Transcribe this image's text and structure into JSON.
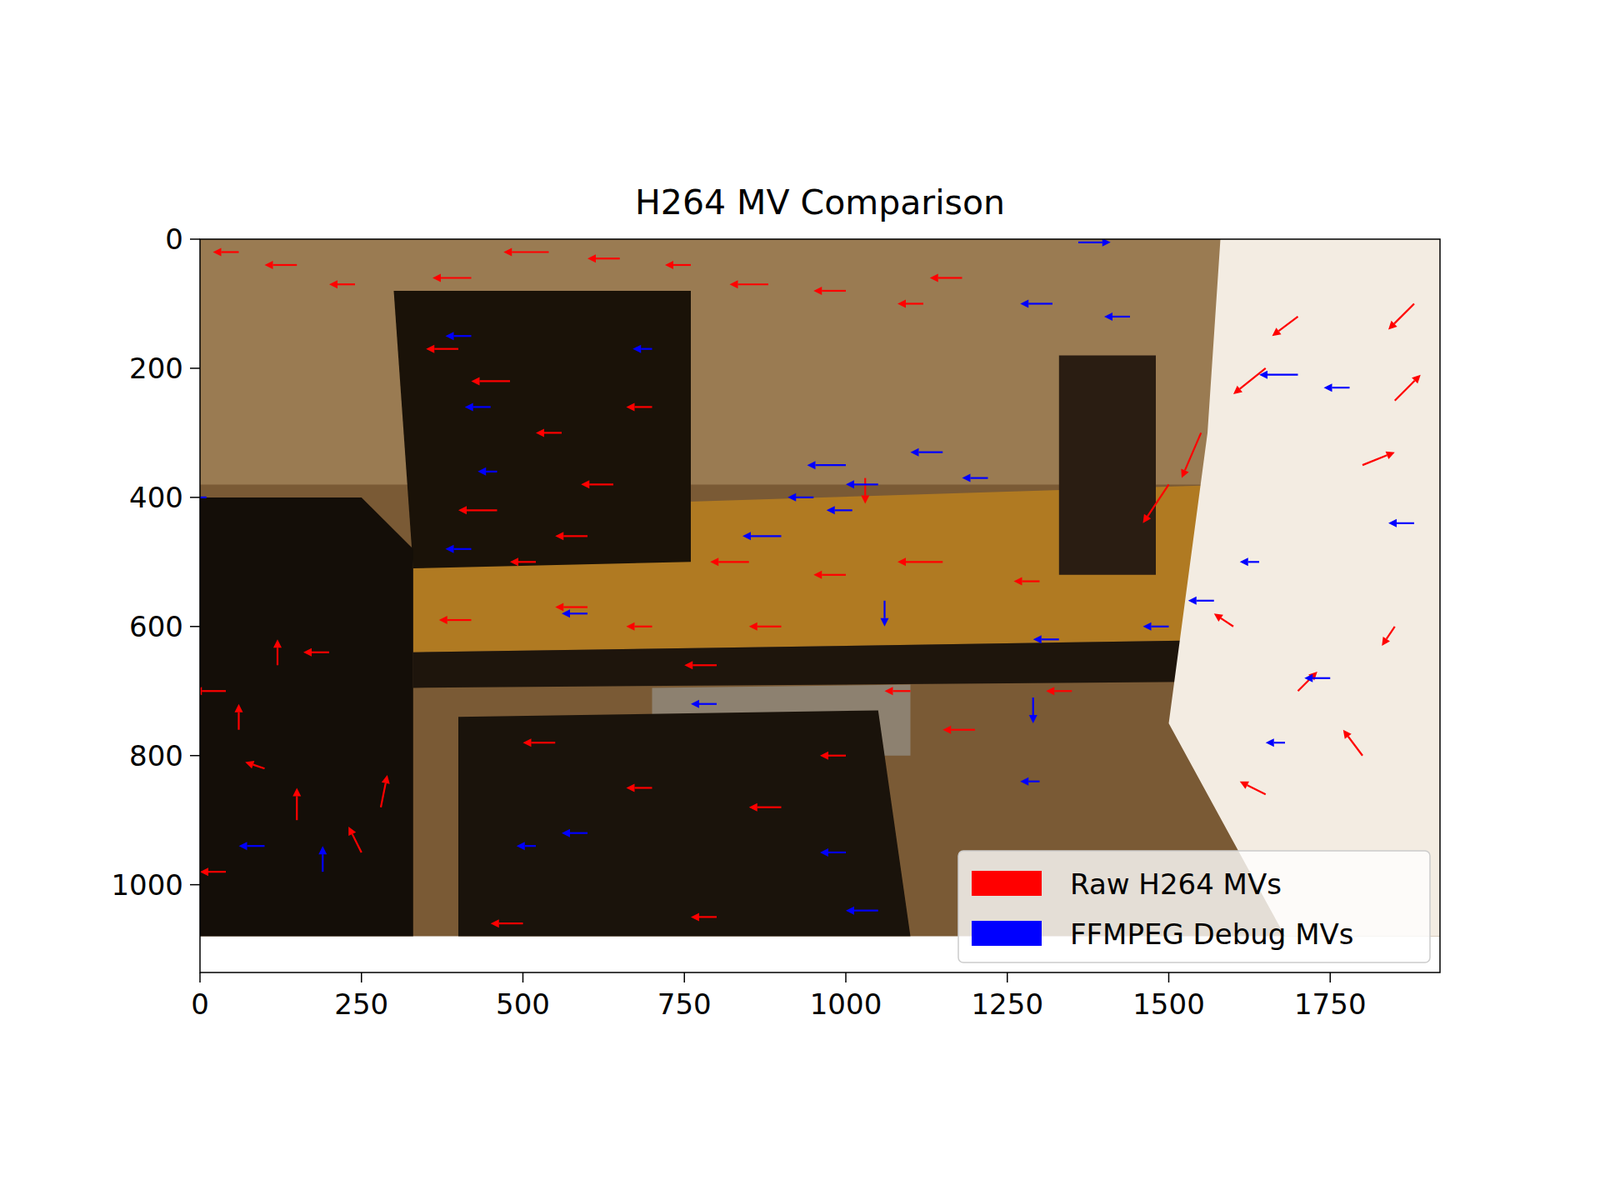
{
  "chart_data": {
    "type": "quiver",
    "title": "H264 MV Comparison",
    "xlim": [
      0,
      1920
    ],
    "ylim": [
      1136,
      0
    ],
    "xticks": [
      0,
      250,
      500,
      750,
      1000,
      1250,
      1500,
      1750
    ],
    "yticks": [
      0,
      200,
      400,
      600,
      800,
      1000
    ],
    "legend": "lower right",
    "series": [
      {
        "name": "Raw H264 MVs",
        "color": "#ff0000",
        "x": [
          60,
          150,
          240,
          420,
          540,
          650,
          760,
          880,
          1000,
          1120,
          1180,
          400,
          480,
          560,
          640,
          700,
          460,
          600,
          520,
          850,
          1000,
          1150,
          1300,
          900,
          700,
          600,
          420,
          40,
          60,
          100,
          150,
          250,
          280,
          200,
          120,
          40,
          550,
          700,
          900,
          1000,
          1200,
          1350,
          800,
          1100,
          500,
          800,
          1500,
          1550,
          1650,
          1700,
          1800,
          1850,
          1600,
          1700,
          1800,
          1650,
          1850,
          1880,
          1030
        ],
        "y": [
          20,
          40,
          70,
          60,
          20,
          30,
          40,
          70,
          80,
          100,
          60,
          170,
          220,
          300,
          380,
          260,
          420,
          460,
          500,
          500,
          520,
          500,
          530,
          600,
          600,
          570,
          590,
          700,
          760,
          820,
          900,
          950,
          880,
          640,
          660,
          980,
          780,
          850,
          880,
          800,
          760,
          700,
          660,
          700,
          1060,
          1050,
          380,
          300,
          200,
          120,
          350,
          250,
          600,
          700,
          800,
          860,
          600,
          100,
          370
        ],
        "u": [
          -40,
          -50,
          -40,
          -60,
          -70,
          -50,
          -40,
          -60,
          -50,
          -40,
          -50,
          -50,
          -60,
          -40,
          -50,
          -40,
          -60,
          -50,
          -40,
          -60,
          -50,
          -70,
          -40,
          -50,
          -40,
          -50,
          -50,
          -50,
          0,
          -30,
          0,
          -20,
          10,
          -40,
          0,
          -40,
          -50,
          -40,
          -50,
          -40,
          -50,
          -40,
          -50,
          -40,
          -50,
          -40,
          -40,
          -30,
          -50,
          -40,
          50,
          40,
          -30,
          30,
          -30,
          -40,
          -20,
          -40,
          0
        ],
        "v": [
          0,
          0,
          0,
          0,
          0,
          0,
          0,
          0,
          0,
          0,
          0,
          0,
          0,
          0,
          0,
          0,
          0,
          0,
          0,
          0,
          0,
          0,
          0,
          0,
          0,
          0,
          0,
          0,
          -40,
          -10,
          -50,
          -40,
          -50,
          0,
          -40,
          0,
          0,
          0,
          0,
          0,
          0,
          0,
          0,
          0,
          0,
          0,
          60,
          70,
          40,
          30,
          -20,
          -40,
          -20,
          -30,
          -40,
          -20,
          30,
          40,
          40
        ]
      },
      {
        "name": "FFMPEG Debug MVs",
        "color": "#0000ff",
        "x": [
          10,
          420,
          450,
          460,
          420,
          1000,
          1050,
          1010,
          900,
          950,
          1150,
          1220,
          1320,
          1360,
          1440,
          1700,
          1780,
          1570,
          1640,
          1880,
          1750,
          1680,
          1500,
          1330,
          1290,
          1300,
          1000,
          1050,
          800,
          600,
          520,
          1060,
          100,
          190,
          700,
          600
        ],
        "y": [
          400,
          150,
          260,
          360,
          480,
          350,
          380,
          420,
          460,
          400,
          330,
          370,
          100,
          5,
          120,
          210,
          230,
          560,
          500,
          440,
          680,
          780,
          600,
          620,
          710,
          840,
          950,
          1040,
          720,
          920,
          940,
          560,
          940,
          980,
          170,
          580
        ],
        "u": [
          -30,
          -40,
          -40,
          -30,
          -40,
          -60,
          -50,
          -40,
          -60,
          -40,
          -50,
          -40,
          -50,
          50,
          -40,
          -60,
          -40,
          -40,
          -30,
          -40,
          -40,
          -30,
          -40,
          -40,
          0,
          -30,
          -40,
          -50,
          -40,
          -40,
          -30,
          0,
          -40,
          0,
          -30,
          -40
        ],
        "v": [
          0,
          0,
          0,
          0,
          0,
          0,
          0,
          0,
          0,
          0,
          0,
          0,
          0,
          0,
          0,
          0,
          0,
          0,
          0,
          0,
          0,
          0,
          0,
          0,
          40,
          0,
          0,
          0,
          0,
          0,
          0,
          40,
          0,
          -40,
          0,
          0
        ]
      }
    ]
  }
}
